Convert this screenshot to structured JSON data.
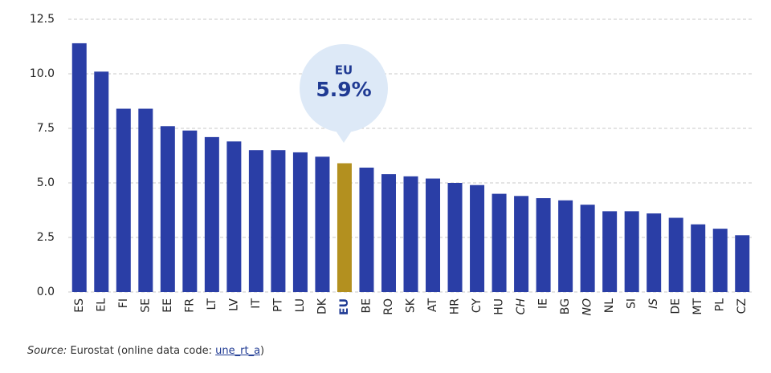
{
  "chart_data": {
    "type": "bar",
    "categories": [
      "ES",
      "EL",
      "FI",
      "SE",
      "EE",
      "FR",
      "LT",
      "LV",
      "IT",
      "PT",
      "LU",
      "DK",
      "EU",
      "BE",
      "RO",
      "SK",
      "AT",
      "HR",
      "CY",
      "HU",
      "CH",
      "IE",
      "BG",
      "NO",
      "NL",
      "SI",
      "IS",
      "DE",
      "MT",
      "PL",
      "CZ"
    ],
    "values": [
      11.4,
      10.1,
      8.4,
      8.4,
      7.6,
      7.4,
      7.1,
      6.9,
      6.5,
      6.5,
      6.4,
      6.2,
      5.9,
      5.7,
      5.4,
      5.3,
      5.2,
      5.0,
      4.9,
      4.5,
      4.4,
      4.3,
      4.2,
      4.0,
      3.7,
      3.7,
      3.6,
      3.4,
      3.1,
      2.9,
      2.6
    ],
    "color": "#2a3ea6",
    "highlight_index": 12,
    "highlight_color": "#b3901f",
    "italic_indices": [
      20,
      23,
      26
    ],
    "ylim": [
      0,
      12.5
    ],
    "yticks": [
      {
        "value": 0,
        "label": "0.0"
      },
      2.5,
      {
        "value": 5,
        "label": "5.0"
      },
      7.5,
      {
        "value": 10,
        "label": "10.0"
      },
      12.5
    ],
    "grid": true,
    "callout": {
      "label": "EU",
      "value": 5.9,
      "value_label": "5.9%"
    },
    "source": {
      "prefix": "Source:",
      "text": "Eurostat (online data code:",
      "link": "une_rt_a",
      "suffix": ")"
    }
  }
}
